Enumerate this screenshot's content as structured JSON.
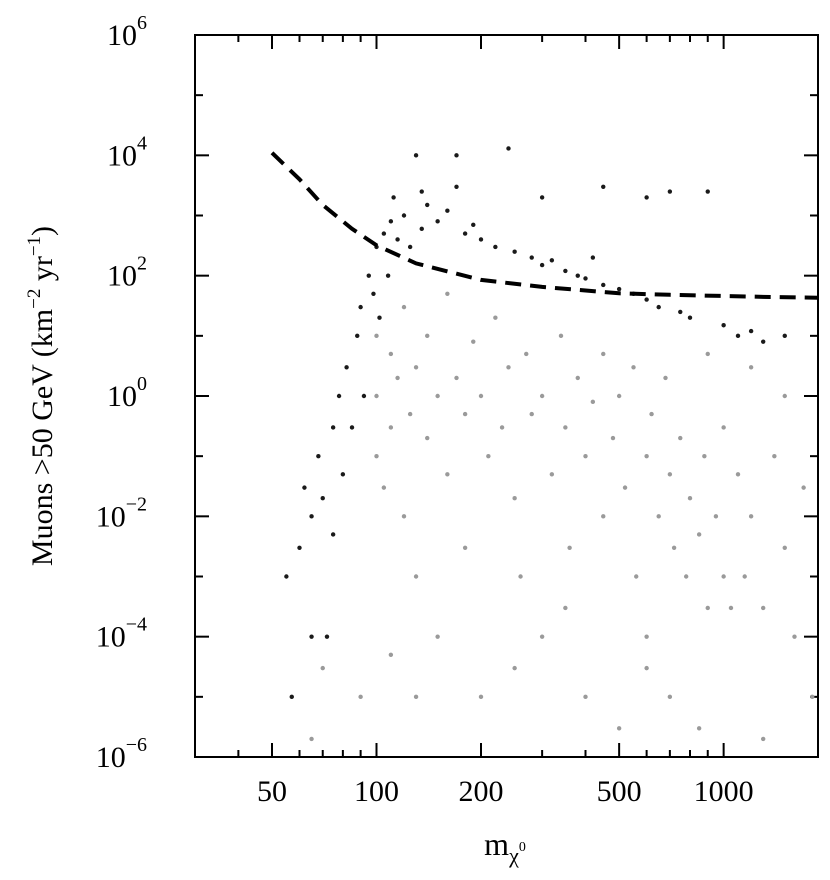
{
  "chart_data": {
    "type": "scatter",
    "xlabel": [
      "m",
      "χ",
      "0"
    ],
    "ylabel": [
      "Muons >50 GeV (km",
      "−2",
      " yr",
      "−1",
      ")"
    ],
    "xlog": true,
    "ylog": true,
    "xlim": [
      30,
      1870
    ],
    "ylim": [
      1e-06,
      1000000
    ],
    "xticks": [
      50,
      100,
      200,
      500,
      1000
    ],
    "xminorticks": [
      30,
      40,
      60,
      70,
      80,
      90,
      300,
      400,
      600,
      700,
      800,
      900
    ],
    "yticks": [
      {
        "value": 1e-06,
        "label": "10",
        "exponent": "−6"
      },
      {
        "value": 0.0001,
        "label": "10",
        "exponent": "−4"
      },
      {
        "value": 0.01,
        "label": "10",
        "exponent": "−2"
      },
      {
        "value": 1,
        "label": "10",
        "exponent": "0"
      },
      {
        "value": 100,
        "label": "10",
        "exponent": "2"
      },
      {
        "value": 10000,
        "label": "10",
        "exponent": "4"
      },
      {
        "value": 1000000,
        "label": "10",
        "exponent": "6"
      }
    ],
    "yminorticks": [
      1e-05,
      0.001,
      0.1,
      10,
      1000,
      100000
    ],
    "series": [
      {
        "color": "#9a9a9a",
        "style": "markers",
        "x": [
          100,
          100,
          100,
          105,
          110,
          110,
          115,
          120,
          120,
          125,
          130,
          130,
          140,
          140,
          150,
          150,
          160,
          160,
          170,
          180,
          180,
          190,
          200,
          200,
          210,
          220,
          230,
          240,
          250,
          260,
          270,
          280,
          300,
          300,
          320,
          340,
          350,
          360,
          380,
          400,
          400,
          420,
          450,
          450,
          480,
          500,
          500,
          520,
          550,
          560,
          600,
          600,
          620,
          650,
          680,
          700,
          700,
          720,
          750,
          780,
          800,
          850,
          880,
          900,
          950,
          1000,
          1000,
          1050,
          1100,
          1150,
          1200,
          1300,
          1400,
          1500,
          1600,
          1700,
          1800,
          1500,
          1200,
          900,
          130,
          90,
          70,
          65,
          110,
          250,
          350,
          600,
          850,
          1300
        ],
        "y": [
          1,
          10,
          0.1,
          0.03,
          5,
          0.3,
          2,
          0.01,
          30,
          0.5,
          3,
          0.001,
          0.2,
          10,
          1,
          0.0001,
          0.05,
          50,
          2,
          0.5,
          0.003,
          8,
          1,
          1e-05,
          0.1,
          20,
          0.3,
          3,
          0.02,
          0.001,
          5,
          0.5,
          1,
          0.0001,
          0.05,
          10,
          0.3,
          0.003,
          2,
          0.1,
          1e-05,
          0.8,
          5,
          0.01,
          0.2,
          1,
          3e-06,
          0.03,
          3,
          0.001,
          0.1,
          0.0001,
          0.5,
          0.01,
          2,
          0.05,
          1e-05,
          0.003,
          0.2,
          0.001,
          0.02,
          0.005,
          0.1,
          0.0003,
          0.01,
          0.001,
          0.3,
          0.0003,
          0.05,
          0.001,
          0.01,
          0.0003,
          0.1,
          0.003,
          0.0001,
          0.03,
          1e-05,
          1,
          3,
          5,
          1e-05,
          1e-05,
          3e-05,
          2e-06,
          5e-05,
          3e-05,
          0.0003,
          3e-05,
          3e-06,
          2e-06
        ]
      },
      {
        "color": "#1a1a1a",
        "style": "markers",
        "x": [
          55,
          57,
          60,
          62,
          65,
          65,
          68,
          70,
          72,
          75,
          75,
          78,
          80,
          82,
          85,
          88,
          90,
          92,
          95,
          98,
          100,
          102,
          105,
          108,
          110,
          112,
          115,
          120,
          125,
          130,
          135,
          140,
          150,
          160,
          170,
          180,
          190,
          200,
          220,
          240,
          250,
          280,
          300,
          320,
          350,
          380,
          400,
          420,
          450,
          500,
          550,
          600,
          650,
          700,
          750,
          800,
          900,
          1000,
          1100,
          1200,
          1300,
          1500,
          600,
          450,
          300,
          170,
          135
        ],
        "y": [
          0.001,
          1e-05,
          0.003,
          0.03,
          0.01,
          0.0001,
          0.1,
          0.02,
          0.0001,
          0.3,
          0.005,
          1,
          0.05,
          3,
          0.3,
          10,
          30,
          1,
          100,
          50,
          300,
          20,
          500,
          100,
          800,
          2000,
          400,
          1000,
          300,
          10000,
          600,
          1500,
          800,
          1200,
          10000,
          500,
          700,
          400,
          300,
          13000,
          250,
          200,
          150,
          180,
          120,
          100,
          90,
          200,
          70,
          60,
          50,
          40,
          30,
          2500,
          25,
          20,
          2500,
          15,
          10,
          12,
          8,
          10,
          2000,
          3000,
          2000,
          3000,
          2500
        ]
      },
      {
        "color": "#000000",
        "style": "dashed",
        "x": [
          50,
          60,
          70,
          85,
          100,
          130,
          200,
          300,
          500,
          700,
          1000,
          1400,
          1870
        ],
        "y": [
          11000,
          4000,
          1500,
          600,
          320,
          160,
          85,
          65,
          51,
          48,
          46,
          44,
          43
        ]
      }
    ]
  }
}
